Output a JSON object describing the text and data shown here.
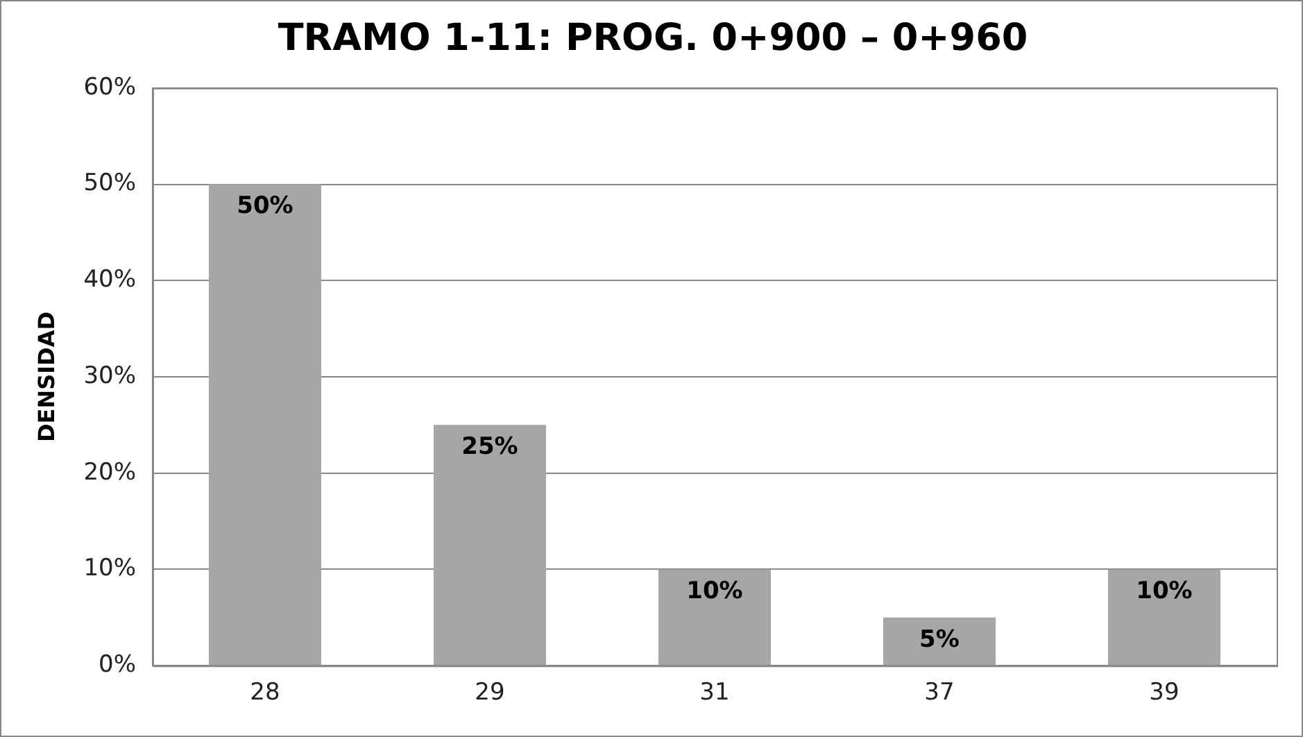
{
  "chart_data": {
    "type": "bar",
    "title": "TRAMO 1-11: PROG. 0+900 – 0+960",
    "ylabel": "DENSIDAD",
    "categories": [
      "28",
      "29",
      "31",
      "37",
      "39"
    ],
    "values": [
      50,
      25,
      10,
      5,
      10
    ],
    "value_labels": [
      "50%",
      "25%",
      "10%",
      "5%",
      "10%"
    ],
    "color": "#a6a6a6",
    "ylim": [
      0,
      60
    ],
    "yticks": [
      {
        "value": 0,
        "label": "0%"
      },
      {
        "value": 10,
        "label": "10%"
      },
      {
        "value": 20,
        "label": "20%"
      },
      {
        "value": 30,
        "label": "30%"
      },
      {
        "value": 40,
        "label": "40%"
      },
      {
        "value": 50,
        "label": "50%"
      },
      {
        "value": 60,
        "label": "60%"
      }
    ],
    "grid": "y",
    "legend": false
  }
}
